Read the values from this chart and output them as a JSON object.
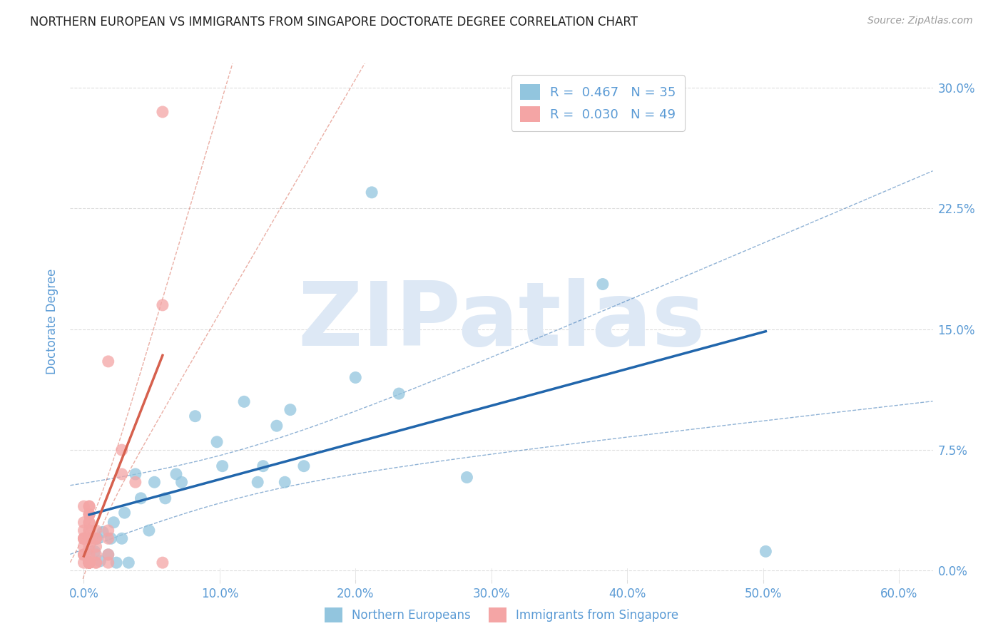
{
  "title": "NORTHERN EUROPEAN VS IMMIGRANTS FROM SINGAPORE DOCTORATE DEGREE CORRELATION CHART",
  "source": "Source: ZipAtlas.com",
  "xlabel_ticks": [
    "0.0%",
    "10.0%",
    "20.0%",
    "30.0%",
    "40.0%",
    "50.0%",
    "60.0%"
  ],
  "xlabel_vals": [
    0.0,
    0.1,
    0.2,
    0.3,
    0.4,
    0.5,
    0.6
  ],
  "ylabel": "Doctorate Degree",
  "ylabel_ticks": [
    "0.0%",
    "7.5%",
    "15.0%",
    "22.5%",
    "30.0%"
  ],
  "ylabel_vals": [
    0.0,
    0.075,
    0.15,
    0.225,
    0.3
  ],
  "xlim": [
    -0.01,
    0.625
  ],
  "ylim": [
    -0.005,
    0.315
  ],
  "blue_R": 0.467,
  "blue_N": 35,
  "pink_R": 0.03,
  "pink_N": 49,
  "blue_color": "#92c5de",
  "pink_color": "#f4a5a5",
  "blue_line_color": "#2166ac",
  "pink_line_color": "#d6604d",
  "watermark": "ZIPatlas",
  "legend_label_blue": "R =  0.467   N = 35",
  "legend_label_pink": "R =  0.030   N = 49",
  "blue_scatter_x": [
    0.004,
    0.008,
    0.01,
    0.012,
    0.014,
    0.018,
    0.02,
    0.022,
    0.024,
    0.028,
    0.03,
    0.033,
    0.038,
    0.042,
    0.048,
    0.052,
    0.06,
    0.068,
    0.072,
    0.082,
    0.098,
    0.102,
    0.118,
    0.128,
    0.132,
    0.142,
    0.148,
    0.152,
    0.162,
    0.2,
    0.212,
    0.232,
    0.282,
    0.382,
    0.502
  ],
  "blue_scatter_y": [
    0.005,
    0.012,
    0.02,
    0.006,
    0.024,
    0.01,
    0.02,
    0.03,
    0.005,
    0.02,
    0.036,
    0.005,
    0.06,
    0.045,
    0.025,
    0.055,
    0.045,
    0.06,
    0.055,
    0.096,
    0.08,
    0.065,
    0.105,
    0.055,
    0.065,
    0.09,
    0.055,
    0.1,
    0.065,
    0.12,
    0.235,
    0.11,
    0.058,
    0.178,
    0.012
  ],
  "pink_scatter_x": [
    0.0,
    0.0,
    0.0,
    0.0,
    0.0,
    0.0,
    0.0,
    0.0,
    0.0,
    0.0,
    0.004,
    0.004,
    0.004,
    0.004,
    0.004,
    0.004,
    0.004,
    0.004,
    0.004,
    0.004,
    0.004,
    0.004,
    0.004,
    0.004,
    0.004,
    0.004,
    0.004,
    0.004,
    0.004,
    0.004,
    0.004,
    0.009,
    0.009,
    0.009,
    0.009,
    0.009,
    0.009,
    0.009,
    0.018,
    0.018,
    0.018,
    0.018,
    0.018,
    0.028,
    0.028,
    0.038,
    0.058,
    0.058,
    0.058
  ],
  "pink_scatter_y": [
    0.005,
    0.01,
    0.01,
    0.015,
    0.02,
    0.02,
    0.02,
    0.025,
    0.03,
    0.04,
    0.005,
    0.005,
    0.005,
    0.005,
    0.005,
    0.005,
    0.005,
    0.005,
    0.01,
    0.015,
    0.02,
    0.02,
    0.025,
    0.025,
    0.03,
    0.03,
    0.035,
    0.035,
    0.035,
    0.04,
    0.04,
    0.005,
    0.005,
    0.01,
    0.015,
    0.02,
    0.02,
    0.025,
    0.005,
    0.01,
    0.02,
    0.025,
    0.13,
    0.06,
    0.075,
    0.055,
    0.005,
    0.165,
    0.285
  ],
  "grid_color": "#dddddd",
  "background_color": "#ffffff",
  "title_color": "#222222",
  "axis_color": "#5b9bd5",
  "watermark_color": "#dde8f5",
  "title_fontsize": 12,
  "tick_fontsize": 12,
  "ylabel_fontsize": 12
}
